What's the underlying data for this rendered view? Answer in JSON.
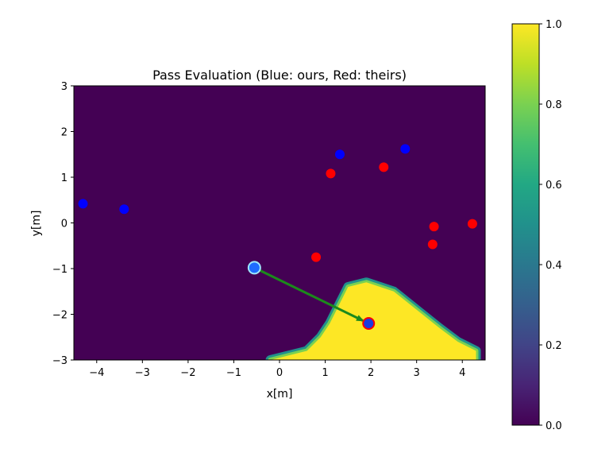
{
  "chart_data": {
    "type": "heatmap",
    "title": "Pass Evaluation (Blue: ours, Red: theirs)",
    "xlabel": "x[m]",
    "ylabel": "y[m]",
    "xlim": [
      -4.5,
      4.5
    ],
    "ylim": [
      -3,
      3
    ],
    "xticks": [
      -4,
      -3,
      -2,
      -1,
      0,
      1,
      2,
      3,
      4
    ],
    "yticks": [
      -3,
      -2,
      -1,
      0,
      1,
      2,
      3
    ],
    "grid": false,
    "heatmap": {
      "colormap": "viridis",
      "background_value": 0.0,
      "high_region_value": 1.0,
      "region_boundary": [
        [
          -0.2,
          -3.0
        ],
        [
          0.6,
          -2.8
        ],
        [
          0.9,
          -2.5
        ],
        [
          1.1,
          -2.2
        ],
        [
          1.4,
          -1.6
        ],
        [
          1.5,
          -1.4
        ],
        [
          1.9,
          -1.3
        ],
        [
          2.5,
          -1.5
        ],
        [
          3.0,
          -1.9
        ],
        [
          3.5,
          -2.3
        ],
        [
          3.9,
          -2.6
        ],
        [
          4.3,
          -2.8
        ],
        [
          4.3,
          -3.0
        ]
      ],
      "fringe_width": 0.12
    },
    "colorbar": {
      "range": [
        0.0,
        1.0
      ],
      "ticks": [
        0.0,
        0.2,
        0.4,
        0.6,
        0.8,
        1.0
      ],
      "tick_labels": [
        "0.0",
        "0.2",
        "0.4",
        "0.6",
        "0.8",
        "1.0"
      ]
    },
    "series": [
      {
        "color": "#0000ff",
        "points": [
          [
            -4.3,
            0.42
          ],
          [
            -3.4,
            0.3
          ],
          [
            1.32,
            1.5
          ],
          [
            2.75,
            1.62
          ]
        ]
      },
      {
        "color": "#ff0000",
        "points": [
          [
            1.12,
            1.08
          ],
          [
            2.28,
            1.22
          ],
          [
            0.8,
            -0.75
          ],
          [
            3.38,
            -0.08
          ],
          [
            3.35,
            -0.47
          ],
          [
            4.22,
            -0.02
          ]
        ]
      }
    ],
    "passer": {
      "x": -0.55,
      "y": -0.98,
      "fill": "#1e6bff",
      "edge": "#9ee8ff"
    },
    "receiver": {
      "x": 1.95,
      "y": -2.2,
      "fill": "#1a3be0",
      "edge": "#ff0000"
    },
    "pass_arrow": {
      "from": [
        -0.55,
        -0.98
      ],
      "to": [
        1.95,
        -2.2
      ],
      "color": "#1c8a1c"
    }
  }
}
